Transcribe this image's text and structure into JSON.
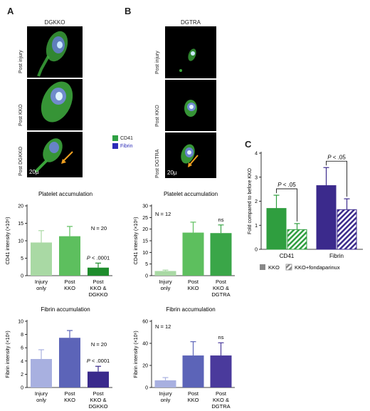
{
  "panels": {
    "A": {
      "letter": "A",
      "title": "DGKKO",
      "image_labels": [
        "Post injury",
        "Post KKO",
        "Post DGKKO"
      ],
      "scale_bar": "20µ"
    },
    "B": {
      "letter": "B",
      "title": "DGTRA",
      "image_labels": [
        "Post injury",
        "Post KKO",
        "Post DGTRA"
      ],
      "scale_bar": "20µ"
    },
    "C": {
      "letter": "C"
    }
  },
  "image_legend": {
    "items": [
      {
        "label": "CD41",
        "color": "#2ea043"
      },
      {
        "label": "Fibrin",
        "color": "#2b2bb8",
        "text_color": "#2b2bb8"
      }
    ]
  },
  "chart_data": [
    {
      "id": "a-platelet",
      "type": "bar",
      "title": "Platelet accumulation",
      "ylabel": "CD41 intensity (×10⁶)",
      "ylim": [
        0,
        20
      ],
      "yticks": [
        0,
        5,
        10,
        15,
        20
      ],
      "categories": [
        [
          "Injury",
          "only"
        ],
        [
          "Post",
          "KKO"
        ],
        [
          "Post",
          "KKO &",
          "DGKKO"
        ]
      ],
      "values": [
        9.5,
        11.3,
        2.3
      ],
      "errors": [
        3.4,
        2.8,
        1.3
      ],
      "colors": [
        "#a9d9a4",
        "#5dbf5e",
        "#1e8c2c"
      ],
      "annotations": [
        {
          "text": "N = 20"
        },
        {
          "text": "P < .0001"
        }
      ]
    },
    {
      "id": "b-platelet",
      "type": "bar",
      "title": "Platelet accumulation",
      "ylabel": "CD41 intensity (×10⁶)",
      "ylim": [
        0,
        30
      ],
      "yticks": [
        0,
        5,
        10,
        15,
        20,
        25,
        30
      ],
      "categories": [
        [
          "Injury",
          "only"
        ],
        [
          "Post",
          "KKO"
        ],
        [
          "Post",
          "KKO &",
          "DGTRA"
        ]
      ],
      "values": [
        2.0,
        18.5,
        18.3
      ],
      "errors": [
        0.4,
        4.5,
        3.5
      ],
      "colors": [
        "#a9d9a4",
        "#5dbf5e",
        "#3aa648"
      ],
      "annotations": [
        {
          "text": "N = 12"
        },
        {
          "text": "ns"
        }
      ]
    },
    {
      "id": "a-fibrin",
      "type": "bar",
      "title": "Fibrin accumulation",
      "ylabel": "Fibrin intensity (×10⁶)",
      "ylim": [
        0,
        10
      ],
      "yticks": [
        0,
        2,
        4,
        6,
        8,
        10
      ],
      "categories": [
        [
          "Injury",
          "only"
        ],
        [
          "Post",
          "KKO"
        ],
        [
          "Post",
          "KKO &",
          "DGKKO"
        ]
      ],
      "values": [
        4.3,
        7.5,
        2.4
      ],
      "errors": [
        1.4,
        1.1,
        0.8
      ],
      "colors": [
        "#a8b0e0",
        "#5c64b8",
        "#3a2a8c"
      ],
      "annotations": [
        {
          "text": "N = 20"
        },
        {
          "text": "P < .0001"
        }
      ]
    },
    {
      "id": "b-fibrin",
      "type": "bar",
      "title": "Fibrin accumulation",
      "ylabel": "Fibrin intensity (×10⁶)",
      "ylim": [
        0,
        60
      ],
      "yticks": [
        0,
        20,
        40,
        60
      ],
      "categories": [
        [
          "Injury",
          "only"
        ],
        [
          "Post",
          "KKO"
        ],
        [
          "Post",
          "KKO &",
          "DGTRA"
        ]
      ],
      "values": [
        6.5,
        29.0,
        29.0
      ],
      "errors": [
        2.5,
        12.5,
        11.5
      ],
      "colors": [
        "#a8b0e0",
        "#5c64b8",
        "#4a3a9c"
      ],
      "annotations": [
        {
          "text": "N = 12"
        },
        {
          "text": "ns"
        }
      ]
    },
    {
      "id": "c-fold",
      "type": "bar",
      "ylabel": "Fold compared to before KKO",
      "ylim": [
        0,
        4
      ],
      "yticks": [
        0,
        1,
        2,
        3,
        4
      ],
      "categories": [
        "CD41",
        "Fibrin"
      ],
      "series": [
        {
          "name": "KKO",
          "values": [
            1.7,
            2.65
          ],
          "errors": [
            0.55,
            0.75
          ]
        },
        {
          "name": "KKO+fondaparinux",
          "values": [
            0.82,
            1.65
          ],
          "errors": [
            0.25,
            0.45
          ]
        }
      ],
      "group_colors": [
        "#2f9e3f",
        "#3b2a8c"
      ],
      "legend_swatch": "#888888",
      "annotations": [
        {
          "text": "P < .05"
        },
        {
          "text": "P < .05"
        }
      ]
    }
  ]
}
